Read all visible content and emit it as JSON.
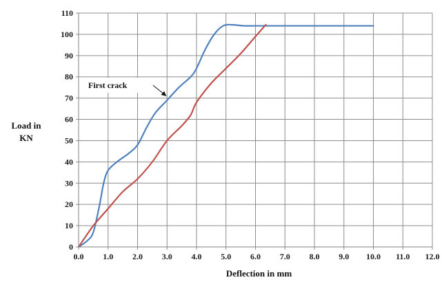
{
  "chart_data": {
    "type": "line",
    "title": "",
    "xlabel": "Deflection in mm",
    "ylabel_line1": "Load in",
    "ylabel_line2": "KN",
    "xlim": [
      0,
      12
    ],
    "ylim": [
      0,
      110
    ],
    "x_ticks": [
      "0.0",
      "1.0",
      "2.0",
      "3.0",
      "4.0",
      "5.0",
      "6.0",
      "7.0",
      "8.0",
      "9.0",
      "10.0",
      "11.0",
      "12.0"
    ],
    "y_ticks": [
      "0",
      "10",
      "20",
      "30",
      "40",
      "50",
      "60",
      "70",
      "80",
      "90",
      "100",
      "110"
    ],
    "grid": true,
    "legend": false,
    "annotations": [
      {
        "text": "First crack",
        "x": 3.0,
        "y": 70
      }
    ],
    "series": [
      {
        "color": "#4f81bd",
        "points": [
          [
            0.0,
            0
          ],
          [
            0.3,
            3
          ],
          [
            0.5,
            7
          ],
          [
            0.7,
            19
          ],
          [
            0.85,
            30
          ],
          [
            1.0,
            36
          ],
          [
            1.3,
            40
          ],
          [
            1.7,
            44
          ],
          [
            2.0,
            48
          ],
          [
            2.3,
            56
          ],
          [
            2.6,
            63
          ],
          [
            3.0,
            69
          ],
          [
            3.4,
            75
          ],
          [
            3.8,
            80
          ],
          [
            4.0,
            84
          ],
          [
            4.3,
            93
          ],
          [
            4.6,
            100
          ],
          [
            4.9,
            104
          ],
          [
            5.2,
            104.5
          ],
          [
            5.6,
            104
          ],
          [
            6.0,
            104
          ],
          [
            7.0,
            104
          ],
          [
            8.0,
            104
          ],
          [
            9.0,
            104
          ],
          [
            10.0,
            104
          ]
        ]
      },
      {
        "color": "#c0504d",
        "points": [
          [
            0.0,
            0
          ],
          [
            0.5,
            10
          ],
          [
            1.0,
            18
          ],
          [
            1.5,
            26
          ],
          [
            2.0,
            32
          ],
          [
            2.5,
            40
          ],
          [
            3.0,
            50
          ],
          [
            3.5,
            57
          ],
          [
            3.8,
            62
          ],
          [
            4.0,
            68
          ],
          [
            4.5,
            77
          ],
          [
            5.0,
            84
          ],
          [
            5.5,
            91
          ],
          [
            6.0,
            99
          ],
          [
            6.35,
            104.5
          ]
        ]
      }
    ]
  }
}
